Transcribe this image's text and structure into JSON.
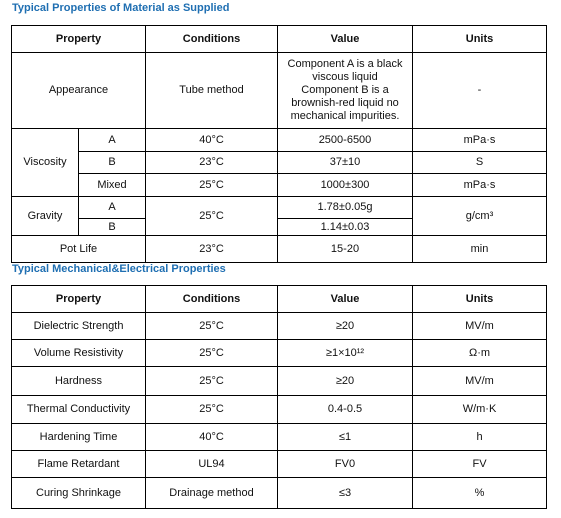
{
  "table1": {
    "title": "Typical Properties of Material as Supplied",
    "headers": [
      "Property",
      "Conditions",
      "Value",
      "Units"
    ],
    "appearance": {
      "property": "Appearance",
      "conditions": "Tube method",
      "value": [
        "Component A is a black viscous liquid",
        "Component B is a brownish-red liquid no mechanical impurities."
      ],
      "units": "-"
    },
    "viscosity": {
      "property": "Viscosity",
      "rows": [
        [
          "A",
          "40°C",
          "2500-6500",
          "mPa·s"
        ],
        [
          "B",
          "23°C",
          "37±10",
          "S"
        ],
        [
          "Mixed",
          "25°C",
          "1000±300",
          "mPa·s"
        ]
      ]
    },
    "gravity": {
      "property": "Gravity",
      "conditions": "25°C",
      "units": "g/cm³",
      "rows": [
        [
          "A",
          "1.78±0.05g"
        ],
        [
          "B",
          "1.14±0.03"
        ]
      ]
    },
    "pot_life": [
      "Pot Life",
      "23°C",
      "15-20",
      "min"
    ]
  },
  "table2": {
    "title": "Typical Mechanical&Electrical Properties",
    "headers": [
      "Property",
      "Conditions",
      "Value",
      "Units"
    ],
    "rows": [
      [
        "Dielectric Strength",
        "25°C",
        "≥20",
        "MV/m"
      ],
      [
        "Volume Resistivity",
        "25°C",
        "≥1×10¹²",
        "Ω·m"
      ],
      [
        "Hardness",
        "25°C",
        "≥20",
        "MV/m"
      ],
      [
        "Thermal Conductivity",
        "25°C",
        "0.4-0.5",
        "W/m·K"
      ],
      [
        "Hardening Time",
        "40°C",
        "≤1",
        "h"
      ],
      [
        "Flame Retardant",
        "UL94",
        "FV0",
        "FV"
      ],
      [
        "Curing Shrinkage",
        "Drainage method",
        "≤3",
        "%"
      ]
    ]
  }
}
